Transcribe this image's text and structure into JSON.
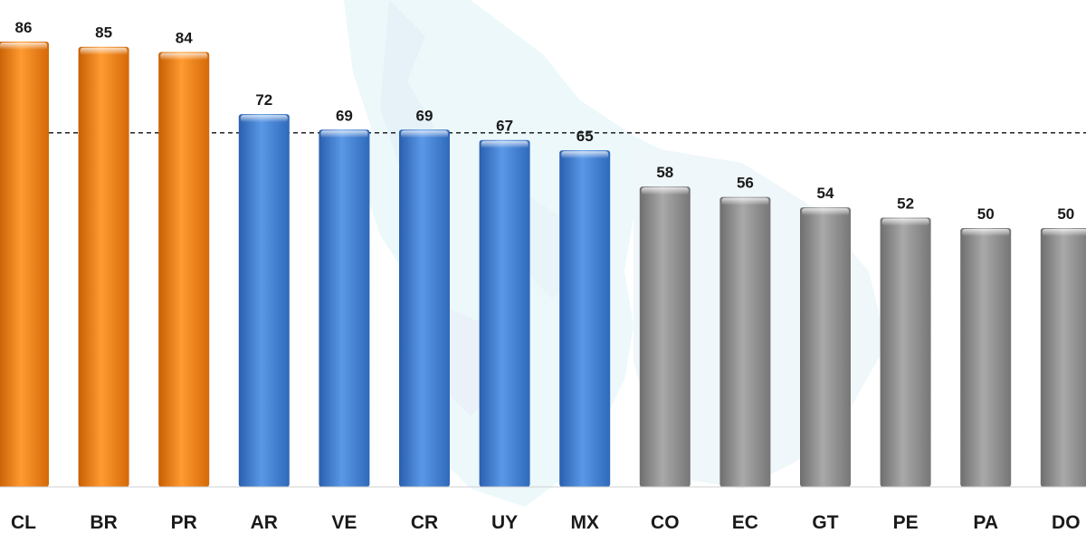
{
  "chart_data": {
    "type": "bar",
    "title": "",
    "xlabel": "",
    "ylabel": "",
    "categories": [
      "CL",
      "BR",
      "PR",
      "AR",
      "VE",
      "CR",
      "UY",
      "MX",
      "CO",
      "EC",
      "GT",
      "PE",
      "PA",
      "DO"
    ],
    "values": [
      86,
      85,
      84,
      72,
      69,
      69,
      67,
      65,
      58,
      56,
      54,
      52,
      50,
      50
    ],
    "groups": [
      "high",
      "high",
      "high",
      "mid",
      "mid",
      "mid",
      "mid",
      "mid",
      "low",
      "low",
      "low",
      "low",
      "low",
      "low"
    ],
    "colors": {
      "high": "#f07d10",
      "mid": "#3e7cd0",
      "low": "#8e8e8e",
      "reference_line": "#222222"
    },
    "reference_line_value": 67,
    "ylim": [
      0,
      86
    ],
    "grid": false,
    "legend": "none",
    "data_labels": true,
    "background": "faint map of the Americas"
  }
}
